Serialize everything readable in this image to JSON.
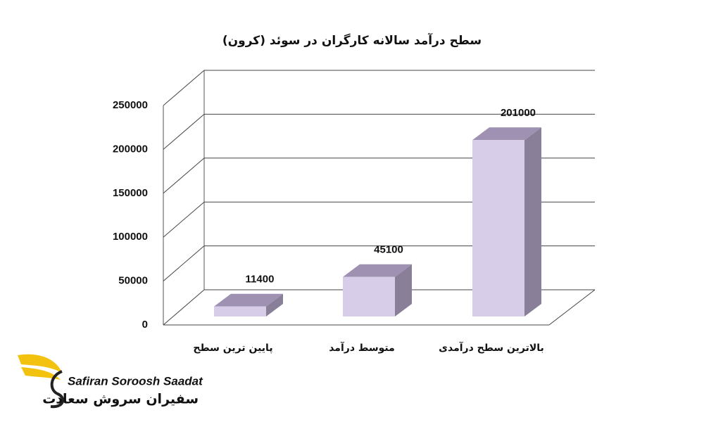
{
  "chart_data": {
    "type": "bar",
    "title": "سطح درآمد سالانه کارگران در سوئد (کرون)",
    "categories": [
      "پایین ترین سطح",
      "متوسط درآمد",
      "بالاترین سطح درآمدی"
    ],
    "values": [
      11400,
      45100,
      201000
    ],
    "color": "#d8cde8",
    "ylim": [
      0,
      250000
    ],
    "yticks": [
      0,
      50000,
      100000,
      150000,
      200000,
      250000
    ],
    "grid": true
  },
  "logo": {
    "name_en": "Safiran Soroosh Saadat",
    "name_fa": "سفیران سروش سعادت"
  }
}
